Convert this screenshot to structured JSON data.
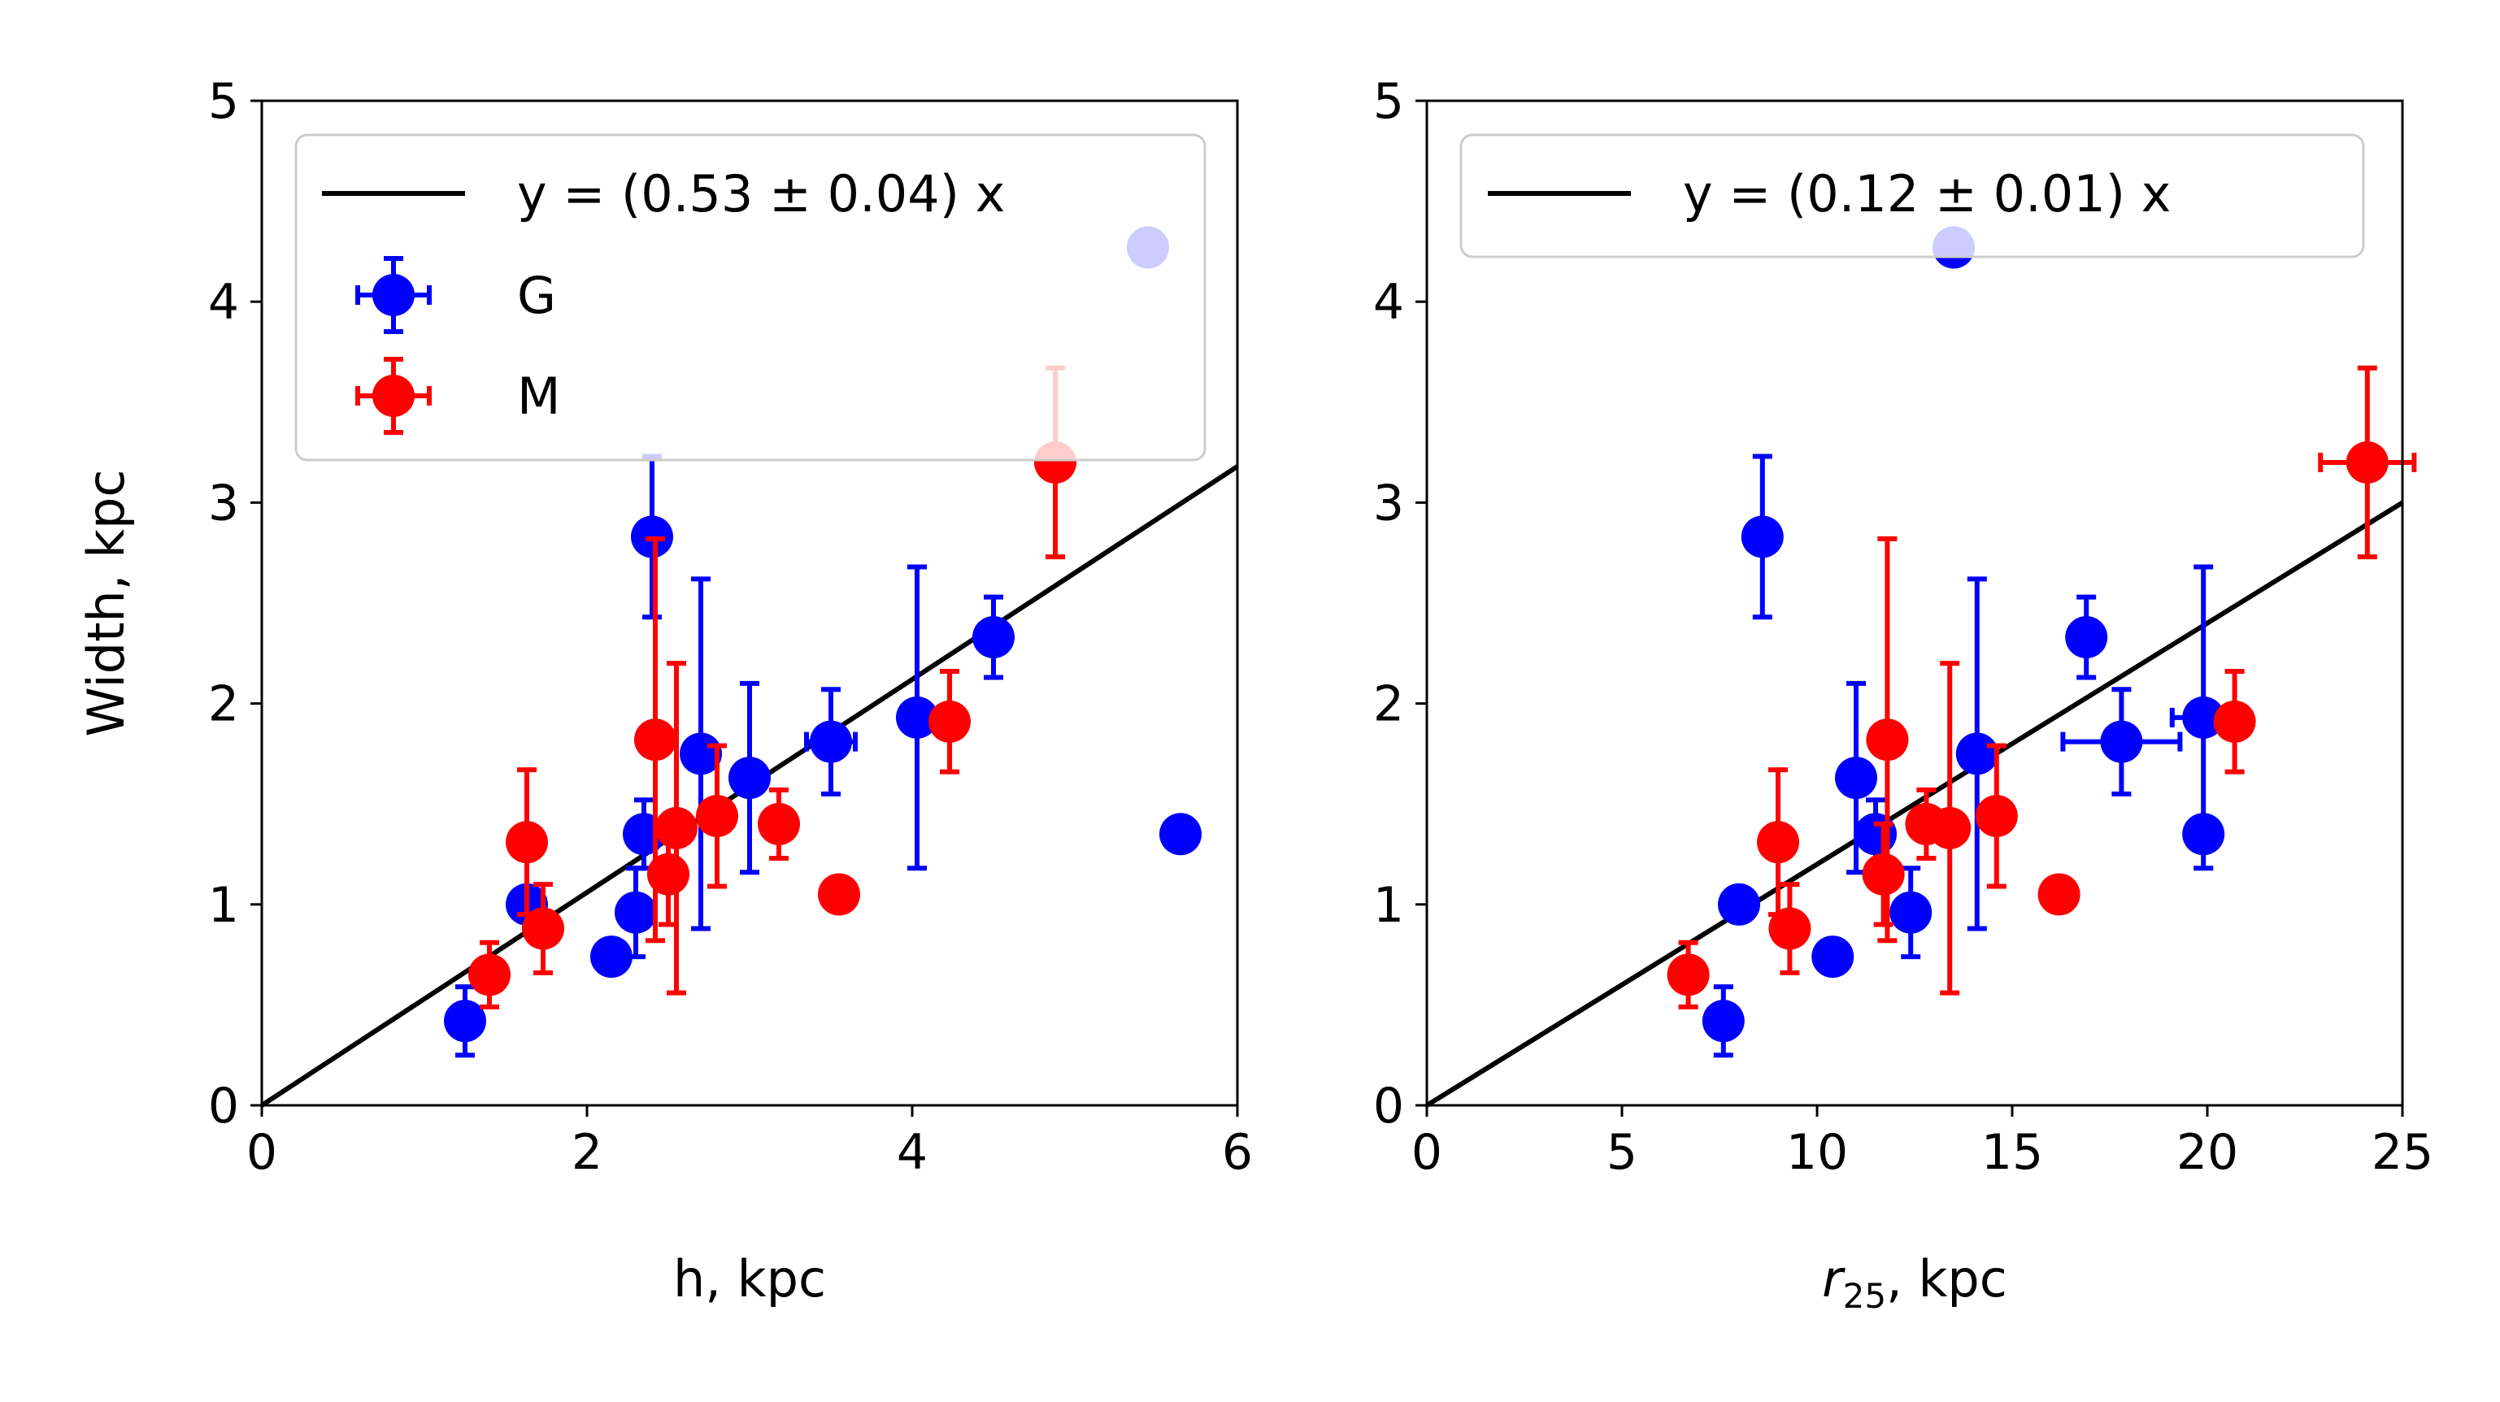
{
  "chart_data": [
    {
      "type": "scatter",
      "xlabel": "h, kpc",
      "ylabel": "Width, kpc",
      "xlim": [
        0,
        6
      ],
      "ylim": [
        0,
        5
      ],
      "xticks": [
        "0",
        "2",
        "4",
        "6"
      ],
      "yticks": [
        "0",
        "1",
        "2",
        "3",
        "4",
        "5"
      ],
      "fit": {
        "label": "y = (0.53 ± 0.04) x",
        "slope": 0.53,
        "color": "#000000"
      },
      "legend": {
        "position": "upper left",
        "entries": [
          "y = (0.53 ± 0.04) x",
          "G",
          "M"
        ]
      },
      "series": [
        {
          "name": "G",
          "color": "#0000ff",
          "points": [
            {
              "x": 1.25,
              "y": 0.42,
              "yerr": 0.17,
              "xerr": 0.0
            },
            {
              "x": 1.63,
              "y": 1.0,
              "yerr": 0.0,
              "xerr": 0.0
            },
            {
              "x": 2.15,
              "y": 0.74,
              "yerr": 0.0,
              "xerr": 0.0
            },
            {
              "x": 2.3,
              "y": 0.96,
              "yerr": 0.22,
              "xerr": 0.0
            },
            {
              "x": 2.35,
              "y": 1.35,
              "yerr": 0.17,
              "xerr": 0.0
            },
            {
              "x": 2.4,
              "y": 2.83,
              "yerr": 0.4,
              "xerr": 0.0
            },
            {
              "x": 2.7,
              "y": 1.75,
              "yerr": 0.87,
              "xerr": 0.0
            },
            {
              "x": 3.0,
              "y": 1.63,
              "yerr": 0.47,
              "xerr": 0.0
            },
            {
              "x": 3.5,
              "y": 1.81,
              "yerr": 0.26,
              "xerr": 0.15
            },
            {
              "x": 4.03,
              "y": 1.93,
              "yerr": 0.75,
              "xerr": 0.0
            },
            {
              "x": 4.5,
              "y": 2.33,
              "yerr": 0.2,
              "xerr": 0.0
            },
            {
              "x": 5.45,
              "y": 4.27,
              "yerr": 0.0,
              "xerr": 0.0
            },
            {
              "x": 5.65,
              "y": 1.35,
              "yerr": 0.0,
              "xerr": 0.0
            }
          ]
        },
        {
          "name": "M",
          "color": "#ff0000",
          "points": [
            {
              "x": 1.4,
              "y": 0.65,
              "yerr": 0.16,
              "xerr": 0.0
            },
            {
              "x": 1.63,
              "y": 1.31,
              "yerr": 0.36,
              "xerr": 0.0
            },
            {
              "x": 1.73,
              "y": 0.88,
              "yerr": 0.22,
              "xerr": 0.0
            },
            {
              "x": 2.42,
              "y": 1.82,
              "yerr": 1.0,
              "xerr": 0.0
            },
            {
              "x": 2.5,
              "y": 1.15,
              "yerr": 0.25,
              "xerr": 0.0
            },
            {
              "x": 2.55,
              "y": 1.38,
              "yerr": 0.82,
              "xerr": 0.0
            },
            {
              "x": 2.8,
              "y": 1.44,
              "yerr": 0.35,
              "xerr": 0.0
            },
            {
              "x": 3.18,
              "y": 1.4,
              "yerr": 0.17,
              "xerr": 0.0
            },
            {
              "x": 3.55,
              "y": 1.05,
              "yerr": 0.0,
              "xerr": 0.0
            },
            {
              "x": 4.23,
              "y": 1.91,
              "yerr": 0.25,
              "xerr": 0.0
            },
            {
              "x": 4.88,
              "y": 3.2,
              "yerr": 0.47,
              "xerr": 0.0
            }
          ]
        }
      ]
    },
    {
      "type": "scatter",
      "xlabel": "r25, kpc",
      "xlabel_main": "r",
      "xlabel_sub": "25",
      "xlabel_rest": ", kpc",
      "ylabel": "",
      "xlim": [
        0,
        25
      ],
      "ylim": [
        0,
        5
      ],
      "xticks": [
        "0",
        "5",
        "10",
        "15",
        "20",
        "25"
      ],
      "yticks": [
        "0",
        "1",
        "2",
        "3",
        "4",
        "5"
      ],
      "fit": {
        "label": "y = (0.12 ± 0.01) x",
        "slope": 0.12,
        "color": "#000000"
      },
      "legend": {
        "position": "upper left",
        "entries": [
          "y = (0.12 ± 0.01) x"
        ]
      },
      "series": [
        {
          "name": "G",
          "color": "#0000ff",
          "points": [
            {
              "x": 7.6,
              "y": 0.42,
              "yerr": 0.17,
              "xerr": 0.0
            },
            {
              "x": 8.0,
              "y": 1.0,
              "yerr": 0.0,
              "xerr": 0.0
            },
            {
              "x": 8.6,
              "y": 2.83,
              "yerr": 0.4,
              "xerr": 0.0
            },
            {
              "x": 10.4,
              "y": 0.74,
              "yerr": 0.0,
              "xerr": 0.0
            },
            {
              "x": 11.0,
              "y": 1.63,
              "yerr": 0.47,
              "xerr": 0.0
            },
            {
              "x": 11.5,
              "y": 1.35,
              "yerr": 0.17,
              "xerr": 0.3
            },
            {
              "x": 12.4,
              "y": 0.96,
              "yerr": 0.22,
              "xerr": 0.0
            },
            {
              "x": 13.5,
              "y": 4.27,
              "yerr": 0.03,
              "xerr": 0.4
            },
            {
              "x": 14.1,
              "y": 1.75,
              "yerr": 0.87,
              "xerr": 0.0
            },
            {
              "x": 16.9,
              "y": 2.33,
              "yerr": 0.2,
              "xerr": 0.0
            },
            {
              "x": 17.8,
              "y": 1.81,
              "yerr": 0.26,
              "xerr": 1.5
            },
            {
              "x": 19.9,
              "y": 1.93,
              "yerr": 0.75,
              "xerr": 0.8
            },
            {
              "x": 19.9,
              "y": 1.35,
              "yerr": 0.0,
              "xerr": 0.0
            }
          ]
        },
        {
          "name": "M",
          "color": "#ff0000",
          "points": [
            {
              "x": 6.7,
              "y": 0.65,
              "yerr": 0.16,
              "xerr": 0.0
            },
            {
              "x": 9.0,
              "y": 1.31,
              "yerr": 0.36,
              "xerr": 0.0
            },
            {
              "x": 9.3,
              "y": 0.88,
              "yerr": 0.22,
              "xerr": 0.0
            },
            {
              "x": 11.7,
              "y": 1.15,
              "yerr": 0.25,
              "xerr": 0.0
            },
            {
              "x": 11.8,
              "y": 1.82,
              "yerr": 1.0,
              "xerr": 0.0
            },
            {
              "x": 12.8,
              "y": 1.4,
              "yerr": 0.17,
              "xerr": 0.0
            },
            {
              "x": 13.4,
              "y": 1.38,
              "yerr": 0.82,
              "xerr": 0.0
            },
            {
              "x": 14.6,
              "y": 1.44,
              "yerr": 0.35,
              "xerr": 0.0
            },
            {
              "x": 16.2,
              "y": 1.05,
              "yerr": 0.0,
              "xerr": 0.0
            },
            {
              "x": 20.7,
              "y": 1.91,
              "yerr": 0.25,
              "xerr": 0.0
            },
            {
              "x": 24.1,
              "y": 3.2,
              "yerr": 0.47,
              "xerr": 1.2
            }
          ]
        }
      ]
    }
  ]
}
